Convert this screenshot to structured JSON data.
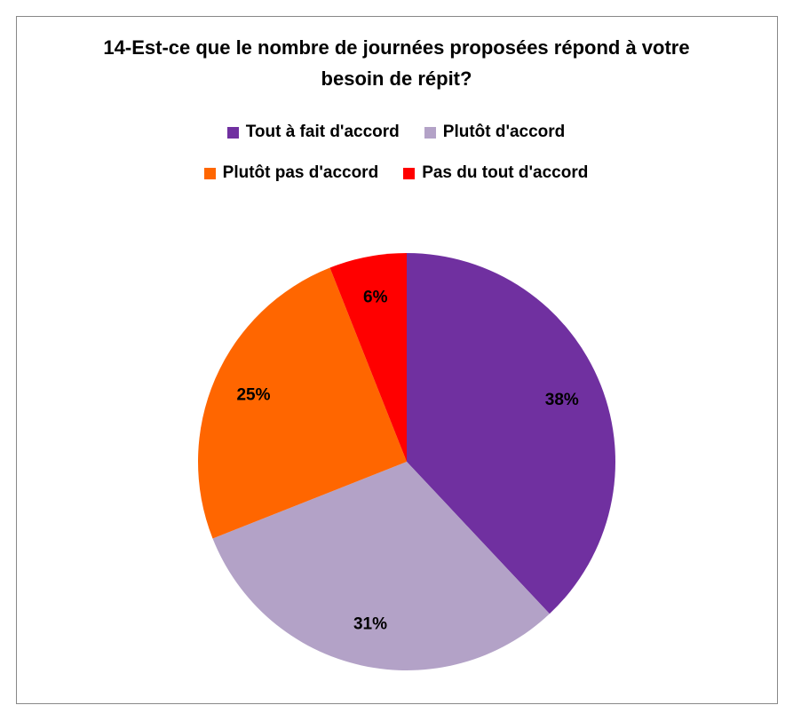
{
  "chart_data": {
    "type": "pie",
    "title": "14-Est-ce que le nombre de journées proposées répond à votre besoin de répit?",
    "categories": [
      "Tout à fait d'accord",
      "Plutôt d'accord",
      "Plutôt pas d'accord",
      "Pas du tout d'accord"
    ],
    "values": [
      38,
      31,
      25,
      6
    ],
    "value_labels": [
      "38%",
      "31%",
      "25%",
      "6%"
    ],
    "colors": [
      "#7030a0",
      "#b3a2c7",
      "#ff6600",
      "#ff0000"
    ],
    "legend": "top"
  }
}
